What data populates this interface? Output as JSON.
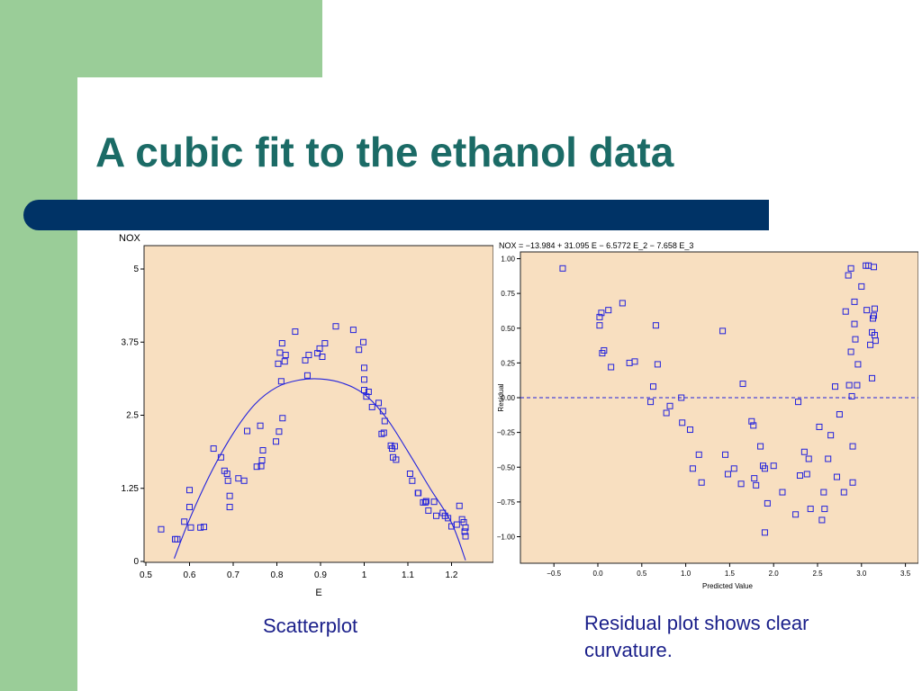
{
  "slide": {
    "title": "A cubic fit to the ethanol data",
    "caption_left": "Scatterplot",
    "caption_right_line1": "Residual plot shows clear",
    "caption_right_line2": "curvature."
  },
  "colors": {
    "sidebar": "#9acd98",
    "bar": "#003366",
    "title": "#1b6b66",
    "plot_bg": "#f8dfc0",
    "marker": "#2222dd",
    "caption": "#1a1f8a"
  },
  "chart_data": [
    {
      "type": "scatter",
      "title": "",
      "xlabel": "E",
      "ylabel": "NOX",
      "xlim": [
        0.5,
        1.3
      ],
      "ylim": [
        0,
        5
      ],
      "x_ticks": [
        "0.5",
        "0.6",
        "0.7",
        "0.8",
        "0.9",
        "1",
        "1.1",
        "1.2"
      ],
      "y_ticks": [
        "0",
        "1.25",
        "2.5",
        "3.75",
        "5"
      ],
      "grid": false,
      "points": [
        [
          0.535,
          0.55
        ],
        [
          0.567,
          0.38
        ],
        [
          0.572,
          0.38
        ],
        [
          0.588,
          0.68
        ],
        [
          0.6,
          1.22
        ],
        [
          0.6,
          0.93
        ],
        [
          0.603,
          0.58
        ],
        [
          0.625,
          0.58
        ],
        [
          0.633,
          0.59
        ],
        [
          0.655,
          1.93
        ],
        [
          0.672,
          1.78
        ],
        [
          0.68,
          1.55
        ],
        [
          0.686,
          1.5
        ],
        [
          0.688,
          1.38
        ],
        [
          0.692,
          1.12
        ],
        [
          0.692,
          0.93
        ],
        [
          0.712,
          1.42
        ],
        [
          0.725,
          1.38
        ],
        [
          0.732,
          2.23
        ],
        [
          0.754,
          1.62
        ],
        [
          0.762,
          2.32
        ],
        [
          0.764,
          1.63
        ],
        [
          0.766,
          1.73
        ],
        [
          0.768,
          1.9
        ],
        [
          0.798,
          2.05
        ],
        [
          0.803,
          3.38
        ],
        [
          0.805,
          2.22
        ],
        [
          0.807,
          3.57
        ],
        [
          0.81,
          3.08
        ],
        [
          0.812,
          3.73
        ],
        [
          0.813,
          2.45
        ],
        [
          0.818,
          3.42
        ],
        [
          0.82,
          3.53
        ],
        [
          0.842,
          3.93
        ],
        [
          0.865,
          3.44
        ],
        [
          0.87,
          3.18
        ],
        [
          0.873,
          3.53
        ],
        [
          0.893,
          3.56
        ],
        [
          0.898,
          3.64
        ],
        [
          0.904,
          3.5
        ],
        [
          0.91,
          3.73
        ],
        [
          0.935,
          4.02
        ],
        [
          0.975,
          3.96
        ],
        [
          0.988,
          3.62
        ],
        [
          0.998,
          3.75
        ],
        [
          1.0,
          3.31
        ],
        [
          1.0,
          3.11
        ],
        [
          1.0,
          2.93
        ],
        [
          1.005,
          2.82
        ],
        [
          1.01,
          2.9
        ],
        [
          1.018,
          2.64
        ],
        [
          1.033,
          2.71
        ],
        [
          1.043,
          2.57
        ],
        [
          1.04,
          2.18
        ],
        [
          1.047,
          2.4
        ],
        [
          1.045,
          2.2
        ],
        [
          1.061,
          1.98
        ],
        [
          1.064,
          1.93
        ],
        [
          1.066,
          1.78
        ],
        [
          1.07,
          1.97
        ],
        [
          1.073,
          1.74
        ],
        [
          1.105,
          1.5
        ],
        [
          1.11,
          1.38
        ],
        [
          1.123,
          1.17
        ],
        [
          1.124,
          1.17
        ],
        [
          1.135,
          1.01
        ],
        [
          1.14,
          1.01
        ],
        [
          1.142,
          1.03
        ],
        [
          1.147,
          0.87
        ],
        [
          1.16,
          1.02
        ],
        [
          1.165,
          0.78
        ],
        [
          1.18,
          0.83
        ],
        [
          1.185,
          0.78
        ],
        [
          1.192,
          0.74
        ],
        [
          1.2,
          0.6
        ],
        [
          1.212,
          0.63
        ],
        [
          1.218,
          0.95
        ],
        [
          1.224,
          0.72
        ],
        [
          1.228,
          0.67
        ],
        [
          1.23,
          0.51
        ],
        [
          1.232,
          0.43
        ],
        [
          1.232,
          0.58
        ]
      ],
      "fit_curve": [
        [
          0.565,
          0.05
        ],
        [
          0.6,
          0.72
        ],
        [
          0.65,
          1.53
        ],
        [
          0.7,
          2.19
        ],
        [
          0.75,
          2.69
        ],
        [
          0.8,
          2.98
        ],
        [
          0.85,
          3.1
        ],
        [
          0.9,
          3.12
        ],
        [
          0.95,
          3.05
        ],
        [
          1.0,
          2.86
        ],
        [
          1.05,
          2.46
        ],
        [
          1.1,
          1.88
        ],
        [
          1.15,
          1.26
        ],
        [
          1.2,
          0.66
        ],
        [
          1.232,
          0.02
        ]
      ]
    },
    {
      "type": "scatter",
      "title": "NOX = −13.984 + 31.095 E − 6.5772 E_2 − 7.658 E_3",
      "xlabel": "Predicted Value",
      "ylabel": "Residual",
      "xlim": [
        -0.6,
        3.6
      ],
      "ylim": [
        -1.0,
        1.0
      ],
      "x_ticks": [
        "−0.5",
        "0.0",
        "0.5",
        "1.0",
        "1.5",
        "2.0",
        "2.5",
        "3.0",
        "3.5"
      ],
      "y_ticks": [
        "1.00",
        "0.75",
        "0.50",
        "0.25",
        "0.00",
        "−0.25",
        "−0.50",
        "−0.75",
        "−1.00"
      ],
      "reference_line_y": 0,
      "grid": false,
      "points": [
        [
          -0.4,
          0.93
        ],
        [
          0.02,
          0.58
        ],
        [
          0.02,
          0.52
        ],
        [
          0.04,
          0.61
        ],
        [
          0.05,
          0.32
        ],
        [
          0.07,
          0.34
        ],
        [
          0.12,
          0.63
        ],
        [
          0.15,
          0.22
        ],
        [
          0.28,
          0.68
        ],
        [
          0.36,
          0.25
        ],
        [
          0.42,
          0.26
        ],
        [
          0.6,
          -0.03
        ],
        [
          0.63,
          0.08
        ],
        [
          0.66,
          0.52
        ],
        [
          0.68,
          0.24
        ],
        [
          0.78,
          -0.11
        ],
        [
          0.82,
          -0.06
        ],
        [
          0.95,
          0.0
        ],
        [
          0.96,
          -0.18
        ],
        [
          1.05,
          -0.23
        ],
        [
          1.08,
          -0.51
        ],
        [
          1.15,
          -0.41
        ],
        [
          1.18,
          -0.61
        ],
        [
          1.42,
          0.48
        ],
        [
          1.45,
          -0.41
        ],
        [
          1.48,
          -0.55
        ],
        [
          1.55,
          -0.51
        ],
        [
          1.63,
          -0.62
        ],
        [
          1.65,
          0.1
        ],
        [
          1.75,
          -0.17
        ],
        [
          1.77,
          -0.2
        ],
        [
          1.78,
          -0.58
        ],
        [
          1.8,
          -0.63
        ],
        [
          1.85,
          -0.35
        ],
        [
          1.88,
          -0.49
        ],
        [
          1.9,
          -0.97
        ],
        [
          1.9,
          -0.51
        ],
        [
          1.93,
          -0.76
        ],
        [
          2.0,
          -0.49
        ],
        [
          2.1,
          -0.68
        ],
        [
          2.25,
          -0.84
        ],
        [
          2.28,
          -0.03
        ],
        [
          2.3,
          -0.56
        ],
        [
          2.35,
          -0.39
        ],
        [
          2.38,
          -0.55
        ],
        [
          2.4,
          -0.44
        ],
        [
          2.42,
          -0.8
        ],
        [
          2.52,
          -0.21
        ],
        [
          2.55,
          -0.88
        ],
        [
          2.57,
          -0.68
        ],
        [
          2.58,
          -0.8
        ],
        [
          2.62,
          -0.44
        ],
        [
          2.65,
          -0.27
        ],
        [
          2.7,
          0.08
        ],
        [
          2.72,
          -0.57
        ],
        [
          2.75,
          -0.12
        ],
        [
          2.8,
          -0.68
        ],
        [
          2.82,
          0.62
        ],
        [
          2.85,
          0.88
        ],
        [
          2.86,
          0.09
        ],
        [
          2.88,
          0.93
        ],
        [
          2.88,
          0.33
        ],
        [
          2.89,
          0.01
        ],
        [
          2.9,
          -0.61
        ],
        [
          2.9,
          -0.35
        ],
        [
          2.92,
          0.69
        ],
        [
          2.92,
          0.53
        ],
        [
          2.93,
          0.42
        ],
        [
          2.95,
          0.09
        ],
        [
          2.96,
          0.24
        ],
        [
          3.0,
          0.8
        ],
        [
          3.05,
          0.95
        ],
        [
          3.06,
          0.63
        ],
        [
          3.08,
          0.95
        ],
        [
          3.1,
          0.38
        ],
        [
          3.12,
          0.47
        ],
        [
          3.12,
          0.14
        ],
        [
          3.13,
          0.57
        ],
        [
          3.14,
          0.94
        ],
        [
          3.15,
          0.64
        ],
        [
          3.15,
          0.45
        ],
        [
          3.16,
          0.41
        ],
        [
          3.14,
          0.59
        ]
      ]
    }
  ]
}
